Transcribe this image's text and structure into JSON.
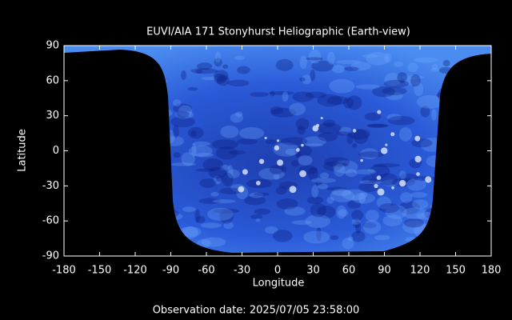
{
  "chart_data": {
    "type": "image",
    "title": "EUVI/AIA 171 Stonyhurst Heliographic (Earth-view)",
    "xlabel": "Longitude",
    "ylabel": "Latitude",
    "annotation": "Observation date: 2025/07/05 23:58:00",
    "xlim": [
      -180,
      180
    ],
    "xticks": [
      -180,
      -150,
      -120,
      -90,
      -60,
      -30,
      0,
      30,
      60,
      90,
      120,
      150,
      180
    ],
    "ylim": [
      -90,
      90
    ],
    "yticks": [
      -90,
      -60,
      -30,
      0,
      30,
      60,
      90
    ]
  }
}
